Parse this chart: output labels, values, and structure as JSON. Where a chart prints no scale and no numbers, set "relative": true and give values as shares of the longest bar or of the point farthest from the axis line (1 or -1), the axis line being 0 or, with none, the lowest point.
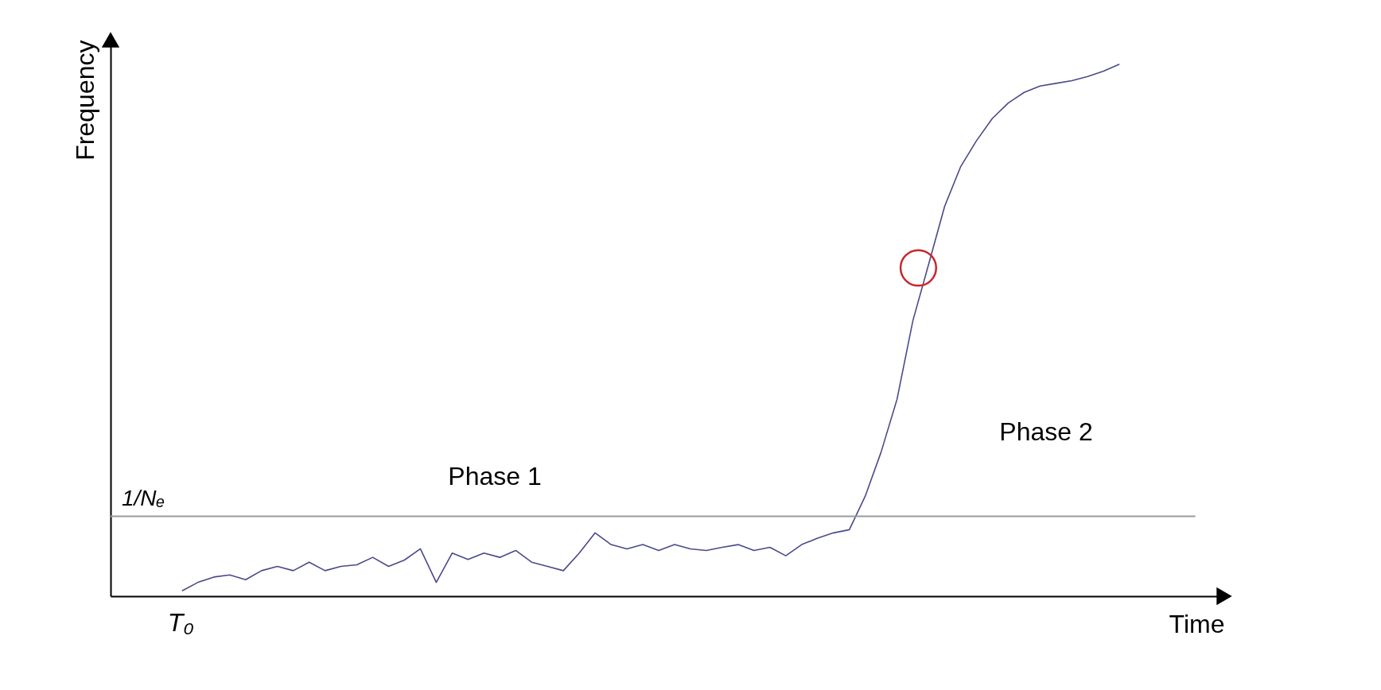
{
  "chart_data": {
    "type": "line",
    "relative": true,
    "xlabel": "Time",
    "ylabel": "Frequency",
    "grid": false,
    "categories": [
      null,
      null,
      null,
      null,
      null,
      null,
      null,
      null,
      null,
      null,
      null,
      null,
      null,
      null,
      null,
      null,
      null,
      null,
      null,
      null,
      null,
      null,
      null,
      null,
      null,
      null,
      null,
      null,
      null,
      null,
      null,
      null,
      null,
      null,
      null,
      null,
      null,
      null,
      null,
      null,
      null,
      null,
      null,
      null,
      null,
      null,
      null,
      null,
      null,
      null,
      null,
      null,
      null,
      null,
      null,
      null,
      null,
      null,
      null,
      null
    ],
    "series": [
      {
        "color": "#4a4a8c",
        "values": [
          0.01,
          0.026,
          0.036,
          0.04,
          0.031,
          0.048,
          0.056,
          0.048,
          0.064,
          0.048,
          0.056,
          0.059,
          0.073,
          0.056,
          0.068,
          0.089,
          0.026,
          0.081,
          0.069,
          0.081,
          0.073,
          0.086,
          0.064,
          0.056,
          0.048,
          0.081,
          0.119,
          0.097,
          0.089,
          0.097,
          0.086,
          0.097,
          0.089,
          0.086,
          0.092,
          0.097,
          0.086,
          0.092,
          0.076,
          0.097,
          0.109,
          0.119,
          0.125,
          0.188,
          0.271,
          0.37,
          0.518,
          0.625,
          0.733,
          0.807,
          0.856,
          0.898,
          0.927,
          0.947,
          0.959,
          0.964,
          0.969,
          0.977,
          0.987,
          1.0
        ]
      }
    ],
    "ref_lines": [
      {
        "axis": "y",
        "value": 0.15,
        "label": "1/Nₑ",
        "color": "#999999"
      }
    ],
    "annotations": [
      "Phase 1",
      "Phase 2",
      "T₀"
    ]
  }
}
